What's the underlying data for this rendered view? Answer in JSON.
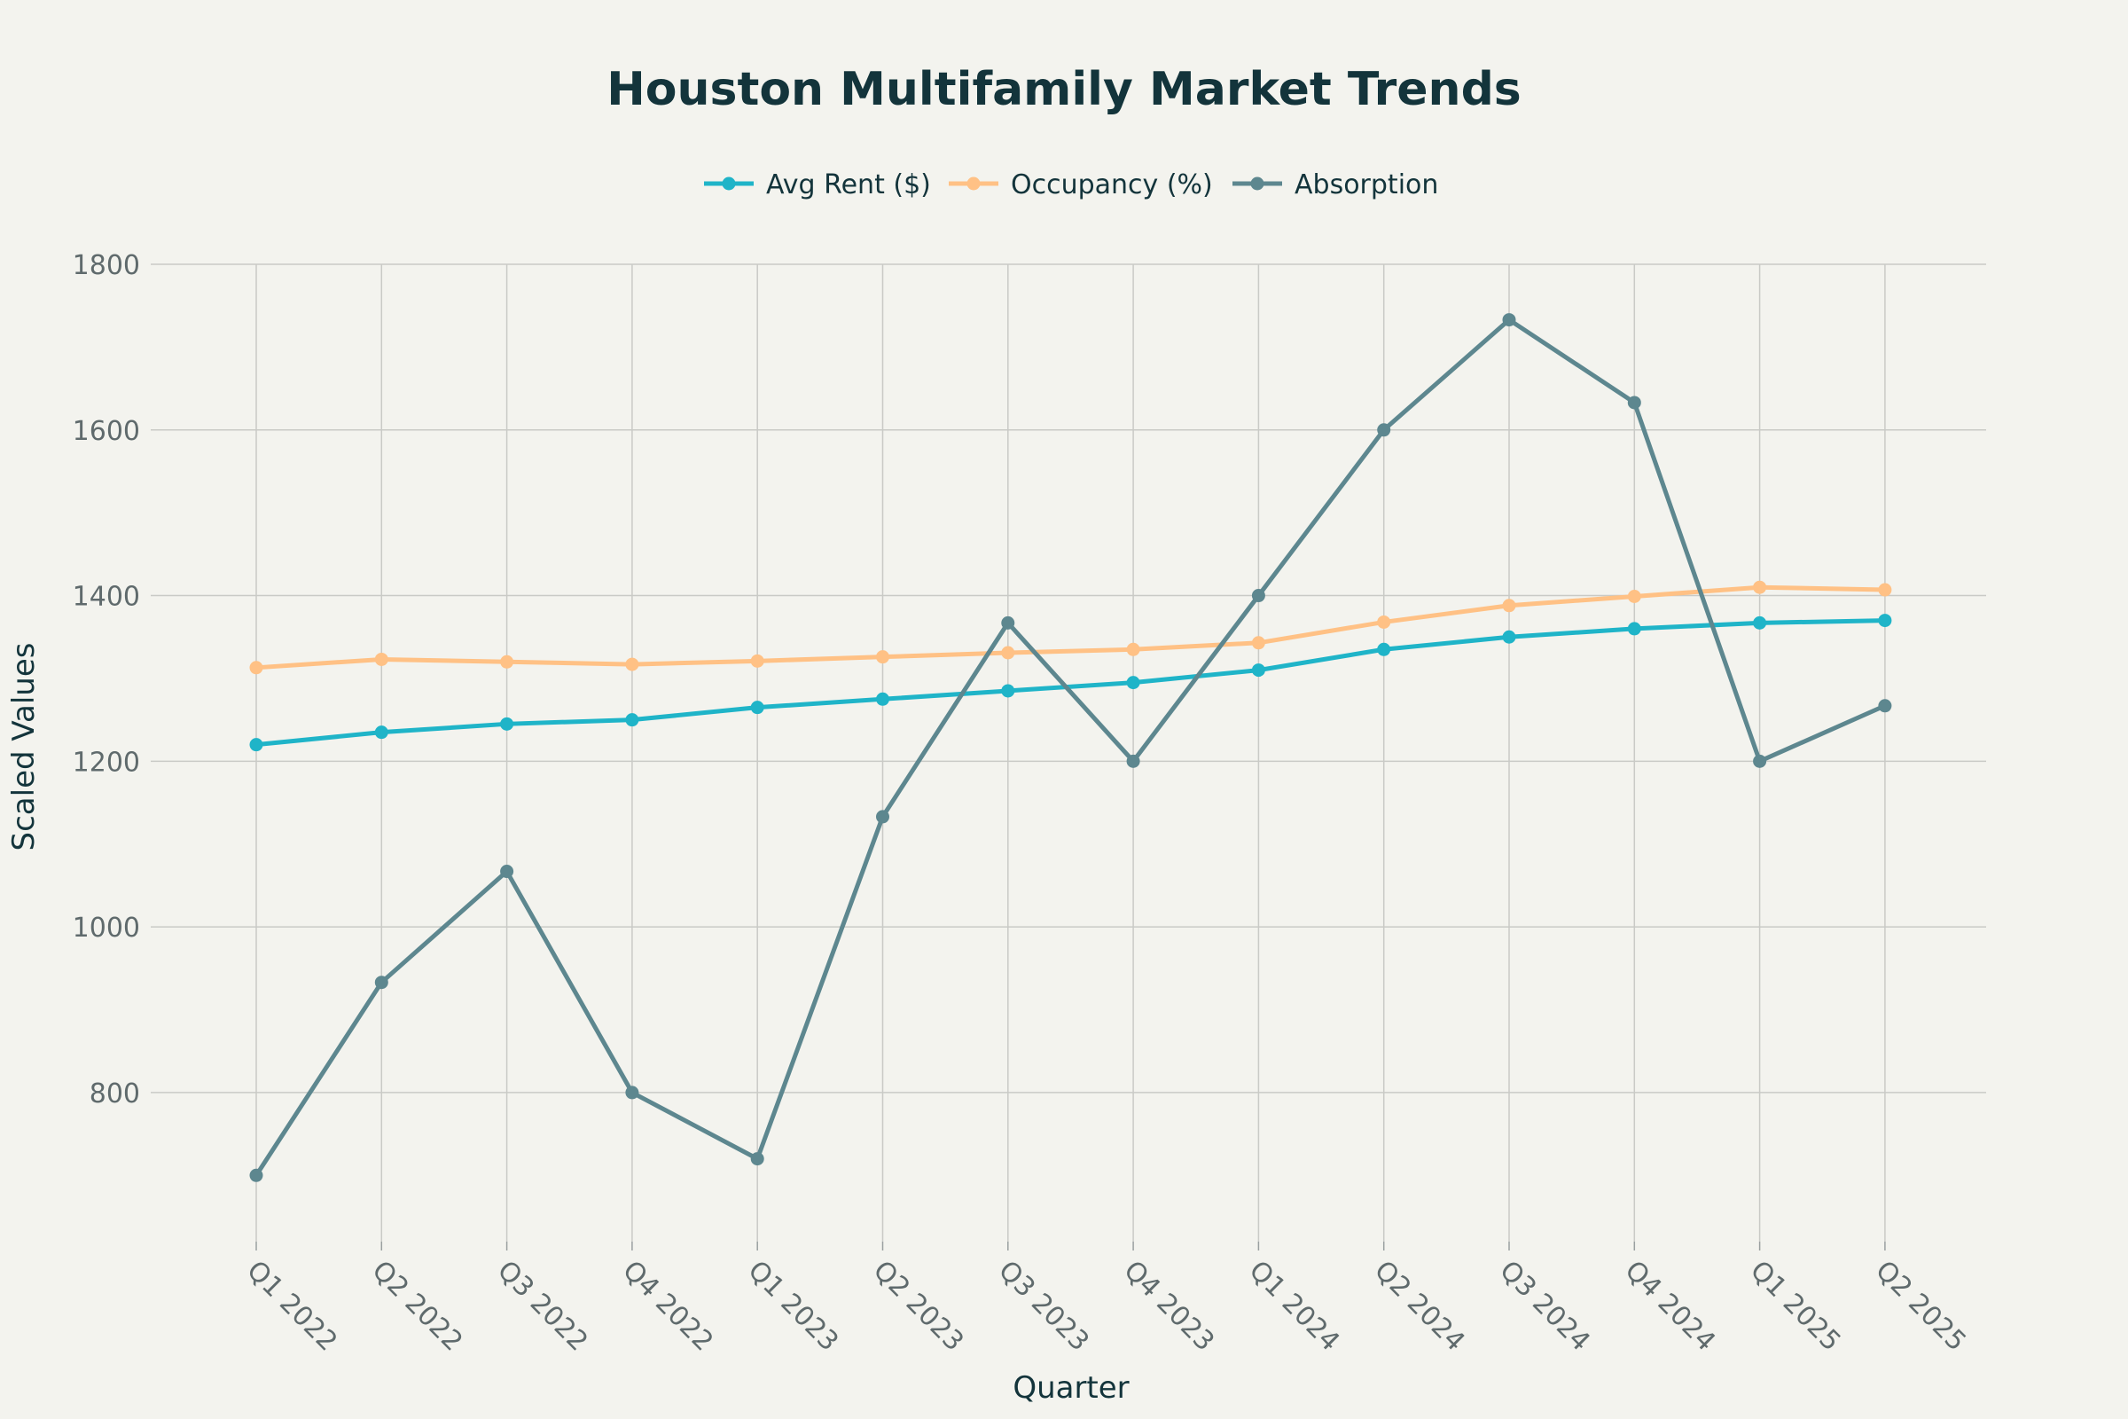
{
  "chart_data": {
    "type": "line",
    "title": "Houston Multifamily Market Trends",
    "xlabel": "Quarter",
    "ylabel": "Scaled Values",
    "categories": [
      "Q1 2022",
      "Q2 2022",
      "Q3 2022",
      "Q4 2022",
      "Q1 2023",
      "Q2 2023",
      "Q3 2023",
      "Q4 2023",
      "Q1 2024",
      "Q2 2024",
      "Q3 2024",
      "Q4 2024",
      "Q1 2025",
      "Q2 2025"
    ],
    "ylim": [
      620,
      1800
    ],
    "yticks": [
      800,
      1000,
      1200,
      1400,
      1600,
      1800
    ],
    "grid": true,
    "legend_position": "top-center",
    "series": [
      {
        "name": "Avg Rent ($)",
        "color": "#1fb4c8",
        "values": [
          1220,
          1235,
          1245,
          1250,
          1265,
          1275,
          1285,
          1295,
          1310,
          1335,
          1350,
          1360,
          1367,
          1370
        ]
      },
      {
        "name": "Occupancy (%)",
        "color": "#ffc185",
        "values": [
          1313,
          1323,
          1320,
          1317,
          1321,
          1326,
          1331,
          1335,
          1343,
          1368,
          1388,
          1399,
          1410,
          1407
        ]
      },
      {
        "name": "Absorption",
        "color": "#5d878f",
        "values": [
          700,
          933,
          1067,
          800,
          720,
          1133,
          1367,
          1200,
          1400,
          1600,
          1733,
          1633,
          1200,
          1267
        ]
      }
    ]
  }
}
